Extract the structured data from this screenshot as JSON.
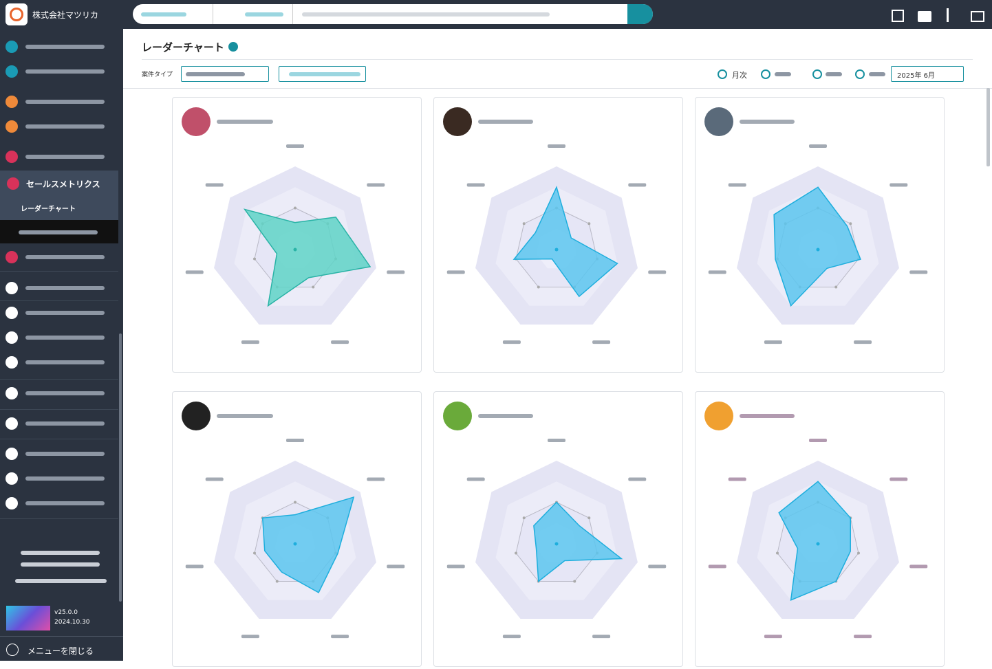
{
  "sidebar": {
    "company": "株式会社マツリカ",
    "section": "セールスメトリクス",
    "item": "レーダーチャート",
    "version": "v25.0.0",
    "date": "2024.10.30",
    "close": "メニューを閉じる"
  },
  "header": {
    "title": "レーダーチャート",
    "filter_label": "案件タイプ",
    "period_option": "月次",
    "period_value": "2025年 6月"
  },
  "chart_data": [
    {
      "type": "radar",
      "color": "#5fd3c7",
      "stroke": "#2ab3a6",
      "rlim": [
        0,
        4
      ],
      "rticks": [
        1,
        2,
        3,
        4
      ],
      "values": [
        1.3,
        2.5,
        3.7,
        1.5,
        3.0,
        0.9,
        3.1
      ]
    },
    {
      "type": "radar",
      "color": "#5cc6ef",
      "stroke": "#1eaedd",
      "rlim": [
        0,
        4
      ],
      "rticks": [
        1,
        2,
        3,
        4
      ],
      "values": [
        3.0,
        0.9,
        3.0,
        2.5,
        0.5,
        2.1,
        1.3
      ]
    },
    {
      "type": "radar",
      "color": "#5cc6ef",
      "stroke": "#1eaedd",
      "rlim": [
        0,
        4
      ],
      "rticks": [
        1,
        2,
        3,
        4
      ],
      "values": [
        3.0,
        1.8,
        2.1,
        1.0,
        3.0,
        2.1,
        2.7
      ]
    },
    {
      "type": "radar",
      "color": "#5cc6ef",
      "stroke": "#1eaedd",
      "rlim": [
        0,
        4
      ],
      "rticks": [
        1,
        2,
        3,
        4
      ],
      "values": [
        1.4,
        3.6,
        2.1,
        2.6,
        1.5,
        1.5,
        2.0
      ]
    },
    {
      "type": "radar",
      "color": "#5cc6ef",
      "stroke": "#1eaedd",
      "rlim": [
        0,
        4
      ],
      "rticks": [
        1,
        2,
        3,
        4
      ],
      "values": [
        2.0,
        1.4,
        3.2,
        0.9,
        2.0,
        1.0,
        1.4
      ]
    },
    {
      "type": "radar",
      "color": "#5cc6ef",
      "stroke": "#1eaedd",
      "rlim": [
        0,
        4
      ],
      "rticks": [
        1,
        2,
        3,
        4
      ],
      "values": [
        3.0,
        2.0,
        1.6,
        2.0,
        3.0,
        1.0,
        2.4
      ]
    }
  ]
}
